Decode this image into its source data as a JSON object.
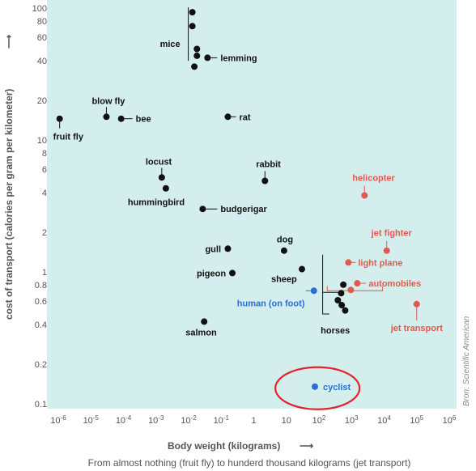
{
  "chart_data": {
    "type": "scatter",
    "xlabel": "Body weight (kilograms)",
    "ylabel": "cost of transport (calories per gram per kilometer)",
    "subtitle": "From almost nothing (fruit fly) to hunderd thousand kilograms (jet transport)",
    "credit": "Bron: Scientific American",
    "x_scale": "log",
    "y_scale": "log",
    "xlim": [
      1e-06,
      1000000.0
    ],
    "ylim": [
      0.1,
      100
    ],
    "grid": false,
    "x_ticks": [
      {
        "v": 1e-06,
        "b": "10",
        "e": "-6"
      },
      {
        "v": 1e-05,
        "b": "10",
        "e": "-5"
      },
      {
        "v": 0.0001,
        "b": "10",
        "e": "-4"
      },
      {
        "v": 0.001,
        "b": "10",
        "e": "-3"
      },
      {
        "v": 0.01,
        "b": "10",
        "e": "-2"
      },
      {
        "v": 0.1,
        "b": "10",
        "e": "-1"
      },
      {
        "v": 1,
        "b": "1",
        "e": ""
      },
      {
        "v": 10,
        "b": "10",
        "e": ""
      },
      {
        "v": 100,
        "b": "10",
        "e": "2"
      },
      {
        "v": 1000,
        "b": "10",
        "e": "3"
      },
      {
        "v": 10000,
        "b": "10",
        "e": "4"
      },
      {
        "v": 100000,
        "b": "10",
        "e": "5"
      },
      {
        "v": 1000000,
        "b": "10",
        "e": "6"
      }
    ],
    "y_ticks": [
      {
        "v": 100,
        "t": "100"
      },
      {
        "v": 80,
        "t": "80"
      },
      {
        "v": 60,
        "t": "60"
      },
      {
        "v": 40,
        "t": "40"
      },
      {
        "v": 20,
        "t": "20"
      },
      {
        "v": 10,
        "t": "10"
      },
      {
        "v": 8,
        "t": "8"
      },
      {
        "v": 6,
        "t": "6"
      },
      {
        "v": 4,
        "t": "4"
      },
      {
        "v": 2,
        "t": "2"
      },
      {
        "v": 1,
        "t": "1"
      },
      {
        "v": 0.8,
        "t": "0.8"
      },
      {
        "v": 0.6,
        "t": "0.6"
      },
      {
        "v": 0.4,
        "t": "0.4"
      },
      {
        "v": 0.2,
        "t": "0.2"
      },
      {
        "v": 0.1,
        "t": "0.1"
      }
    ],
    "colors": {
      "animal": "#111111",
      "machine": "#e05a4e",
      "human": "#2a6fd6",
      "background": "#d3eeec",
      "highlight": "#e3232a"
    },
    "points": [
      {
        "x": 1.1e-06,
        "y": 14.5,
        "group": "animal"
      },
      {
        "x": 3e-05,
        "y": 15,
        "group": "animal"
      },
      {
        "x": 8.5e-05,
        "y": 14.5,
        "group": "animal"
      },
      {
        "x": 0.0015,
        "y": 5.2,
        "group": "animal"
      },
      {
        "x": 0.002,
        "y": 4.3,
        "group": "animal"
      },
      {
        "x": 0.013,
        "y": 93,
        "group": "animal"
      },
      {
        "x": 0.013,
        "y": 73,
        "group": "animal"
      },
      {
        "x": 0.018,
        "y": 49,
        "group": "animal"
      },
      {
        "x": 0.018,
        "y": 43.5,
        "group": "animal"
      },
      {
        "x": 0.015,
        "y": 36,
        "group": "animal"
      },
      {
        "x": 0.038,
        "y": 42,
        "group": "animal"
      },
      {
        "x": 0.027,
        "y": 3.0,
        "group": "animal"
      },
      {
        "x": 0.16,
        "y": 15,
        "group": "animal"
      },
      {
        "x": 2.2,
        "y": 4.9,
        "group": "animal"
      },
      {
        "x": 0.16,
        "y": 1.5,
        "group": "animal"
      },
      {
        "x": 0.22,
        "y": 0.98,
        "group": "animal"
      },
      {
        "x": 8.5,
        "y": 1.45,
        "group": "animal"
      },
      {
        "x": 30,
        "y": 1.05,
        "group": "animal"
      },
      {
        "x": 0.03,
        "y": 0.42,
        "group": "animal"
      },
      {
        "x": 380,
        "y": 0.61,
        "group": "animal"
      },
      {
        "x": 480,
        "y": 0.69,
        "group": "animal"
      },
      {
        "x": 560,
        "y": 0.8,
        "group": "animal"
      },
      {
        "x": 500,
        "y": 0.56,
        "group": "animal"
      },
      {
        "x": 640,
        "y": 0.51,
        "group": "animal"
      },
      {
        "x": 2500,
        "y": 3.8,
        "group": "machine"
      },
      {
        "x": 12000,
        "y": 1.45,
        "group": "machine"
      },
      {
        "x": 800,
        "y": 1.18,
        "group": "machine"
      },
      {
        "x": 1500,
        "y": 0.82,
        "group": "machine"
      },
      {
        "x": 950,
        "y": 0.73,
        "group": "machine"
      },
      {
        "x": 100000,
        "y": 0.57,
        "group": "machine"
      },
      {
        "x": 70,
        "y": 0.72,
        "group": "human"
      },
      {
        "x": 75,
        "y": 0.135,
        "group": "human"
      }
    ],
    "labels": [
      {
        "text": "fruit fly",
        "x": 1.1e-06,
        "y": 14.5,
        "group": "animal",
        "dx": -8,
        "dy": 26,
        "anchor": "start",
        "line": [
          [
            0,
            4
          ],
          [
            0,
            12
          ]
        ]
      },
      {
        "text": "blow fly",
        "x": 3e-05,
        "y": 15,
        "group": "animal",
        "dx": -18,
        "dy": -16,
        "anchor": "start",
        "line": [
          [
            0,
            -4
          ],
          [
            0,
            -12
          ]
        ]
      },
      {
        "text": "bee",
        "x": 8.5e-05,
        "y": 14.5,
        "group": "animal",
        "dx": 18,
        "dy": 4,
        "anchor": "start",
        "line": [
          [
            4,
            0
          ],
          [
            14,
            0
          ]
        ]
      },
      {
        "text": "locust",
        "x": 0.0015,
        "y": 5.2,
        "group": "animal",
        "dx": -20,
        "dy": -16,
        "anchor": "start",
        "line": [
          [
            0,
            -4
          ],
          [
            0,
            -12
          ]
        ]
      },
      {
        "text": "hummingbird",
        "x": 0.002,
        "y": 4.3,
        "group": "animal",
        "dx": -47,
        "dy": 21,
        "anchor": "start",
        "line": null
      },
      {
        "text": "mice",
        "x": 0.013,
        "y": 93,
        "group": "animal",
        "dx": -40,
        "dy": 43,
        "anchor": "start",
        "line": [
          [
            -5,
            -6
          ],
          [
            -5,
            60
          ]
        ]
      },
      {
        "text": "lemming",
        "x": 0.038,
        "y": 42,
        "group": "animal",
        "dx": 16,
        "dy": 4,
        "anchor": "start",
        "line": [
          [
            4,
            0
          ],
          [
            12,
            0
          ]
        ]
      },
      {
        "text": "budgerigar",
        "x": 0.027,
        "y": 3.0,
        "group": "animal",
        "dx": 22,
        "dy": 4,
        "anchor": "start",
        "line": [
          [
            4,
            0
          ],
          [
            18,
            0
          ]
        ]
      },
      {
        "text": "rat",
        "x": 0.16,
        "y": 15,
        "group": "animal",
        "dx": 14,
        "dy": 4,
        "anchor": "start",
        "line": [
          [
            4,
            0
          ],
          [
            10,
            0
          ]
        ]
      },
      {
        "text": "rabbit",
        "x": 2.2,
        "y": 4.9,
        "group": "animal",
        "dx": -11,
        "dy": -17,
        "anchor": "start",
        "line": [
          [
            0,
            -4
          ],
          [
            0,
            -12
          ]
        ]
      },
      {
        "text": "gull",
        "x": 0.16,
        "y": 1.5,
        "group": "animal",
        "dx": -28,
        "dy": 4,
        "anchor": "start",
        "line": null
      },
      {
        "text": "pigeon",
        "x": 0.22,
        "y": 0.98,
        "group": "animal",
        "dx": -44,
        "dy": 4,
        "anchor": "start",
        "line": null
      },
      {
        "text": "dog",
        "x": 8.5,
        "y": 1.45,
        "group": "animal",
        "dx": -9,
        "dy": -10,
        "anchor": "start",
        "line": null
      },
      {
        "text": "sheep",
        "x": 30,
        "y": 1.05,
        "group": "animal",
        "dx": -38,
        "dy": 16,
        "anchor": "start",
        "line": null
      },
      {
        "text": "salmon",
        "x": 0.03,
        "y": 0.42,
        "group": "animal",
        "dx": -23,
        "dy": 17,
        "anchor": "start",
        "line": null
      },
      {
        "text": "horses",
        "x": 500,
        "y": 0.56,
        "group": "animal",
        "dx": -26,
        "dy": 35,
        "anchor": "start",
        "line": null
      },
      {
        "text": "helicopter",
        "x": 2500,
        "y": 3.8,
        "group": "machine",
        "dx": -15,
        "dy": -18,
        "anchor": "start",
        "line": [
          [
            0,
            -4
          ],
          [
            0,
            -12
          ]
        ]
      },
      {
        "text": "jet fighter",
        "x": 12000,
        "y": 1.45,
        "group": "machine",
        "dx": -19,
        "dy": -18,
        "anchor": "start",
        "line": [
          [
            0,
            -4
          ],
          [
            0,
            -12
          ]
        ]
      },
      {
        "text": "light plane",
        "x": 800,
        "y": 1.18,
        "group": "machine",
        "dx": 12,
        "dy": 4,
        "anchor": "start",
        "line": [
          [
            4,
            0
          ],
          [
            9,
            0
          ]
        ]
      },
      {
        "text": "automobiles",
        "x": 1500,
        "y": 0.82,
        "group": "machine",
        "dx": 14,
        "dy": 4,
        "anchor": "start",
        "line": [
          [
            4,
            0
          ],
          [
            11,
            0
          ]
        ]
      },
      {
        "text": "jet transport",
        "x": 100000,
        "y": 0.57,
        "group": "machine",
        "dx": -32,
        "dy": 33,
        "anchor": "start",
        "line": [
          [
            0,
            4
          ],
          [
            0,
            20
          ]
        ]
      },
      {
        "text": "human (on foot)",
        "x": 70,
        "y": 0.72,
        "group": "human",
        "dx": -95,
        "dy": 19,
        "anchor": "start",
        "line": [
          [
            -4,
            0
          ],
          [
            -10,
            0
          ]
        ]
      },
      {
        "text": "cyclist",
        "x": 75,
        "y": 0.135,
        "group": "human",
        "dx": 10,
        "dy": 4,
        "anchor": "start",
        "line": null
      }
    ]
  }
}
